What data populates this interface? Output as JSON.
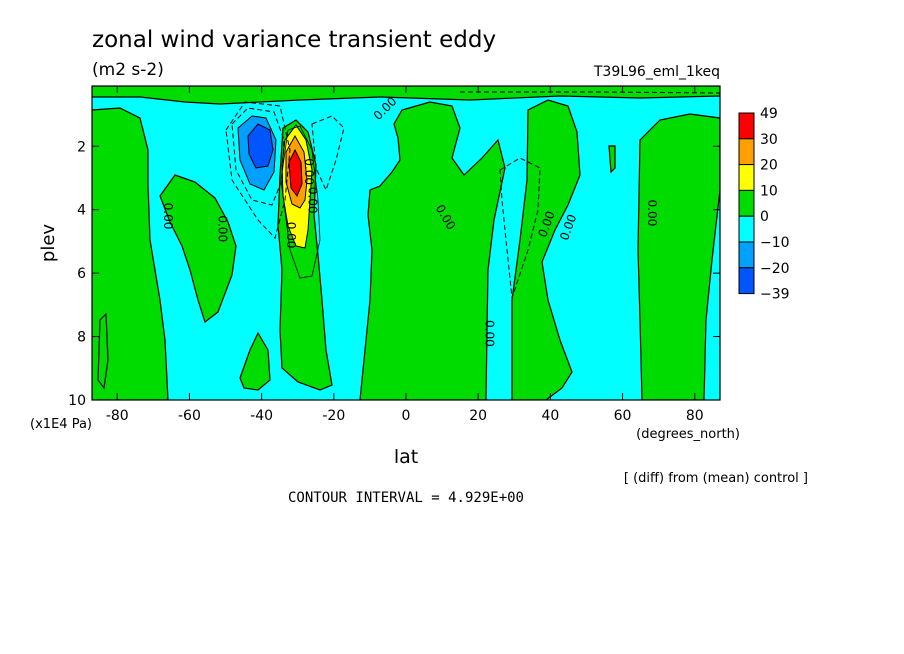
{
  "chart_data": {
    "type": "heatmap",
    "title": "zonal wind variance transient eddy",
    "units": "(m2 s-2)",
    "run_label": "T39L96_eml_1keq",
    "xlabel": "lat",
    "x_units": "(degrees_north)",
    "ylabel": "plev",
    "y_units": "(x1E4 Pa)",
    "x_ticks": [
      "-80",
      "-60",
      "-40",
      "-20",
      "0",
      "20",
      "40",
      "60",
      "80"
    ],
    "x_tick_values": [
      -80,
      -60,
      -40,
      -20,
      0,
      20,
      40,
      60,
      80
    ],
    "y_ticks": [
      "2",
      "4",
      "6",
      "8",
      "10"
    ],
    "y_tick_values": [
      2,
      4,
      6,
      8,
      10
    ],
    "xlim": [
      -87,
      87
    ],
    "ylim": [
      0.1,
      10
    ],
    "y_inverted": true,
    "grid": false,
    "legend_position": "right",
    "colorbar": {
      "labels": [
        "49",
        "30",
        "20",
        "10",
        "0",
        "−10",
        "−20",
        "−39"
      ],
      "bins": [
        {
          "lo": 30,
          "hi": 49,
          "color": "#ff0000"
        },
        {
          "lo": 20,
          "hi": 30,
          "color": "#ffa000"
        },
        {
          "lo": 10,
          "hi": 20,
          "color": "#ffff00"
        },
        {
          "lo": 0,
          "hi": 10,
          "color": "#00dc00"
        },
        {
          "lo": -10,
          "hi": 0,
          "color": "#00ffff"
        },
        {
          "lo": -20,
          "hi": -10,
          "color": "#00a0ff"
        },
        {
          "lo": -39,
          "hi": -20,
          "color": "#0055ff"
        }
      ]
    },
    "contour_labels": [
      "0.00",
      "0.00",
      "0.00",
      "0.00",
      "0.00",
      "0.00",
      "0.00",
      "0.00",
      "0.00",
      "0.00",
      "0.00"
    ],
    "contour_interval": "CONTOUR INTERVAL = 4.929E+00",
    "footnote": "[ (diff) from (mean) control ]"
  }
}
